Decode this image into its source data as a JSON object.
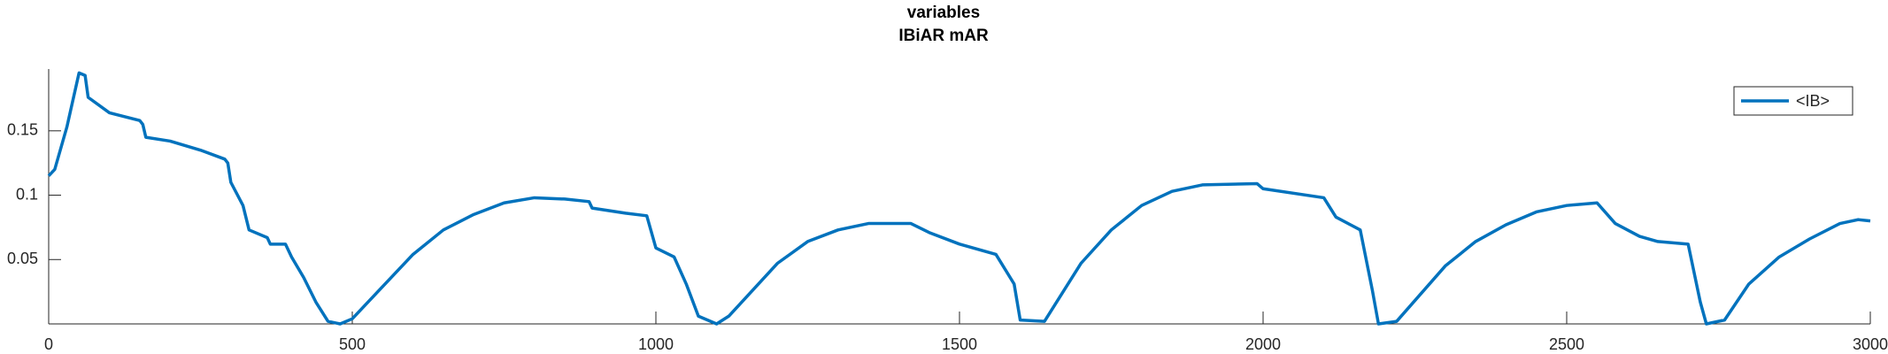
{
  "chart_data": {
    "type": "line",
    "title": "variables",
    "subtitle": "IBiAR mAR",
    "x": [
      0,
      10,
      30,
      50,
      60,
      65,
      100,
      150,
      155,
      160,
      200,
      250,
      290,
      295,
      300,
      320,
      330,
      360,
      365,
      390,
      400,
      420,
      440,
      460,
      480,
      500,
      540,
      600,
      650,
      700,
      750,
      800,
      850,
      890,
      895,
      950,
      985,
      1000,
      1030,
      1050,
      1070,
      1100,
      1120,
      1200,
      1250,
      1300,
      1350,
      1420,
      1450,
      1500,
      1560,
      1590,
      1600,
      1640,
      1700,
      1750,
      1800,
      1850,
      1900,
      1990,
      2000,
      2100,
      2120,
      2160,
      2180,
      2190,
      2220,
      2300,
      2350,
      2400,
      2450,
      2500,
      2550,
      2580,
      2620,
      2650,
      2700,
      2720,
      2730,
      2760,
      2800,
      2850,
      2900,
      2950,
      2980,
      3000
    ],
    "series": [
      {
        "name": "<IB>",
        "color": "#0072bd",
        "values": [
          0.115,
          0.12,
          0.153,
          0.195,
          0.193,
          0.176,
          0.164,
          0.158,
          0.155,
          0.145,
          0.142,
          0.135,
          0.128,
          0.125,
          0.11,
          0.092,
          0.073,
          0.067,
          0.062,
          0.062,
          0.052,
          0.036,
          0.017,
          0.002,
          0,
          0.004,
          0.024,
          0.054,
          0.073,
          0.085,
          0.094,
          0.098,
          0.097,
          0.095,
          0.09,
          0.086,
          0.084,
          0.059,
          0.052,
          0.031,
          0.006,
          0,
          0.006,
          0.047,
          0.064,
          0.073,
          0.078,
          0.078,
          0.071,
          0.062,
          0.054,
          0.031,
          0.003,
          0.002,
          0.047,
          0.073,
          0.092,
          0.103,
          0.108,
          0.109,
          0.105,
          0.098,
          0.083,
          0.073,
          0.026,
          0,
          0.002,
          0.045,
          0.064,
          0.077,
          0.087,
          0.092,
          0.094,
          0.078,
          0.068,
          0.064,
          0.062,
          0.017,
          0,
          0.003,
          0.031,
          0.052,
          0.066,
          0.078,
          0.081,
          0.08
        ]
      }
    ],
    "xlim": [
      0,
      3000
    ],
    "xticks": [
      0,
      500,
      1000,
      1500,
      2000,
      2500,
      3000
    ],
    "ylim": [
      0,
      0.198
    ],
    "yticks": [
      0.05,
      0.1,
      0.15
    ],
    "legend": "top-right"
  }
}
